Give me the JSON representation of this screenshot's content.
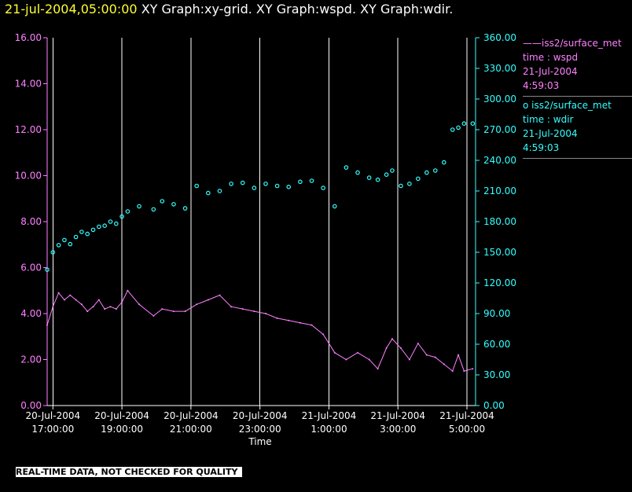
{
  "title": {
    "timestamp": "21-jul-2004,05:00:00",
    "graphs": " XY Graph:xy-grid.  XY Graph:wspd.  XY Graph:wdir."
  },
  "legend": [
    {
      "symbol": "——",
      "name": "iss2/surface_met",
      "var": "time : wspd",
      "date": "21-Jul-2004",
      "time": "4:59:03"
    },
    {
      "symbol": "o ",
      "name": "iss2/surface_met",
      "var": "time : wdir",
      "date": "21-Jul-2004",
      "time": "4:59:03"
    }
  ],
  "notice": "REAL-TIME DATA, NOT CHECKED FOR QUALITY",
  "colors": {
    "wspd": "#ff80ff",
    "wdir": "#33ffff",
    "grid": "#ffffff",
    "background": "#000000"
  },
  "chart_data": {
    "type": "line",
    "xlabel": "Time",
    "x_range": [
      "2004-07-20T16:50:00",
      "2004-07-21T05:15:00"
    ],
    "x_ticks": [
      {
        "t": "2004-07-20T17:00:00",
        "l1": "20-Jul-2004",
        "l2": "17:00:00"
      },
      {
        "t": "2004-07-20T19:00:00",
        "l1": "20-Jul-2004",
        "l2": "19:00:00"
      },
      {
        "t": "2004-07-20T21:00:00",
        "l1": "20-Jul-2004",
        "l2": "21:00:00"
      },
      {
        "t": "2004-07-20T23:00:00",
        "l1": "20-Jul-2004",
        "l2": "23:00:00"
      },
      {
        "t": "2004-07-21T01:00:00",
        "l1": "21-Jul-2004",
        "l2": "1:00:00"
      },
      {
        "t": "2004-07-21T03:00:00",
        "l1": "21-Jul-2004",
        "l2": "3:00:00"
      },
      {
        "t": "2004-07-21T05:00:00",
        "l1": "21-Jul-2004",
        "l2": "5:00:00"
      }
    ],
    "y_left": {
      "range": [
        0,
        16
      ],
      "ticks": [
        "0.00",
        "2.00",
        "4.00",
        "6.00",
        "8.00",
        "10.00",
        "12.00",
        "14.00",
        "16.00"
      ]
    },
    "y_right": {
      "range": [
        0,
        360
      ],
      "ticks": [
        "0.00",
        "30.00",
        "60.00",
        "90.00",
        "120.00",
        "150.00",
        "180.00",
        "210.00",
        "240.00",
        "270.00",
        "300.00",
        "330.00",
        "360.00"
      ]
    },
    "vertical_grid": true,
    "series": [
      {
        "name": "iss2/surface_met",
        "variable": "wspd",
        "axis": "left",
        "style": "line",
        "points": [
          [
            "2004-07-20T16:50:00",
            3.5
          ],
          [
            "2004-07-20T17:00:00",
            4.3
          ],
          [
            "2004-07-20T17:10:00",
            4.9
          ],
          [
            "2004-07-20T17:20:00",
            4.6
          ],
          [
            "2004-07-20T17:30:00",
            4.8
          ],
          [
            "2004-07-20T17:40:00",
            4.6
          ],
          [
            "2004-07-20T17:50:00",
            4.4
          ],
          [
            "2004-07-20T18:00:00",
            4.1
          ],
          [
            "2004-07-20T18:10:00",
            4.3
          ],
          [
            "2004-07-20T18:20:00",
            4.6
          ],
          [
            "2004-07-20T18:30:00",
            4.2
          ],
          [
            "2004-07-20T18:40:00",
            4.3
          ],
          [
            "2004-07-20T18:50:00",
            4.2
          ],
          [
            "2004-07-20T19:00:00",
            4.5
          ],
          [
            "2004-07-20T19:10:00",
            5.0
          ],
          [
            "2004-07-20T19:30:00",
            4.4
          ],
          [
            "2004-07-20T19:55:00",
            3.9
          ],
          [
            "2004-07-20T20:10:00",
            4.2
          ],
          [
            "2004-07-20T20:30:00",
            4.1
          ],
          [
            "2004-07-20T20:50:00",
            4.1
          ],
          [
            "2004-07-20T21:10:00",
            4.4
          ],
          [
            "2004-07-20T21:30:00",
            4.6
          ],
          [
            "2004-07-20T21:50:00",
            4.8
          ],
          [
            "2004-07-20T22:10:00",
            4.3
          ],
          [
            "2004-07-20T22:30:00",
            4.2
          ],
          [
            "2004-07-20T22:50:00",
            4.1
          ],
          [
            "2004-07-20T23:10:00",
            4.0
          ],
          [
            "2004-07-20T23:30:00",
            3.8
          ],
          [
            "2004-07-20T23:50:00",
            3.7
          ],
          [
            "2004-07-21T00:10:00",
            3.6
          ],
          [
            "2004-07-21T00:30:00",
            3.5
          ],
          [
            "2004-07-21T00:50:00",
            3.1
          ],
          [
            "2004-07-21T01:10:00",
            2.3
          ],
          [
            "2004-07-21T01:30:00",
            2.0
          ],
          [
            "2004-07-21T01:50:00",
            2.3
          ],
          [
            "2004-07-21T02:10:00",
            2.0
          ],
          [
            "2004-07-21T02:25:00",
            1.6
          ],
          [
            "2004-07-21T02:40:00",
            2.5
          ],
          [
            "2004-07-21T02:50:00",
            2.9
          ],
          [
            "2004-07-21T03:05:00",
            2.5
          ],
          [
            "2004-07-21T03:20:00",
            2.0
          ],
          [
            "2004-07-21T03:35:00",
            2.7
          ],
          [
            "2004-07-21T03:50:00",
            2.2
          ],
          [
            "2004-07-21T04:05:00",
            2.1
          ],
          [
            "2004-07-21T04:20:00",
            1.8
          ],
          [
            "2004-07-21T04:35:00",
            1.5
          ],
          [
            "2004-07-21T04:45:00",
            2.2
          ],
          [
            "2004-07-21T04:55:00",
            1.5
          ],
          [
            "2004-07-21T05:10:00",
            1.6
          ]
        ]
      },
      {
        "name": "iss2/surface_met",
        "variable": "wdir",
        "axis": "right",
        "style": "scatter",
        "points": [
          [
            "2004-07-20T16:50:00",
            133
          ],
          [
            "2004-07-20T17:00:00",
            150
          ],
          [
            "2004-07-20T17:10:00",
            157
          ],
          [
            "2004-07-20T17:20:00",
            162
          ],
          [
            "2004-07-20T17:30:00",
            158
          ],
          [
            "2004-07-20T17:40:00",
            165
          ],
          [
            "2004-07-20T17:50:00",
            170
          ],
          [
            "2004-07-20T18:00:00",
            168
          ],
          [
            "2004-07-20T18:10:00",
            172
          ],
          [
            "2004-07-20T18:20:00",
            175
          ],
          [
            "2004-07-20T18:30:00",
            176
          ],
          [
            "2004-07-20T18:40:00",
            180
          ],
          [
            "2004-07-20T18:50:00",
            178
          ],
          [
            "2004-07-20T19:00:00",
            185
          ],
          [
            "2004-07-20T19:10:00",
            190
          ],
          [
            "2004-07-20T19:30:00",
            195
          ],
          [
            "2004-07-20T19:55:00",
            192
          ],
          [
            "2004-07-20T20:10:00",
            200
          ],
          [
            "2004-07-20T20:30:00",
            197
          ],
          [
            "2004-07-20T20:50:00",
            193
          ],
          [
            "2004-07-20T21:10:00",
            215
          ],
          [
            "2004-07-20T21:30:00",
            208
          ],
          [
            "2004-07-20T21:50:00",
            210
          ],
          [
            "2004-07-20T22:10:00",
            217
          ],
          [
            "2004-07-20T22:30:00",
            218
          ],
          [
            "2004-07-20T22:50:00",
            213
          ],
          [
            "2004-07-20T23:10:00",
            217
          ],
          [
            "2004-07-20T23:30:00",
            215
          ],
          [
            "2004-07-20T23:50:00",
            214
          ],
          [
            "2004-07-21T00:10:00",
            219
          ],
          [
            "2004-07-21T00:30:00",
            220
          ],
          [
            "2004-07-21T00:50:00",
            213
          ],
          [
            "2004-07-21T01:10:00",
            195
          ],
          [
            "2004-07-21T01:30:00",
            233
          ],
          [
            "2004-07-21T01:50:00",
            228
          ],
          [
            "2004-07-21T02:10:00",
            223
          ],
          [
            "2004-07-21T02:25:00",
            221
          ],
          [
            "2004-07-21T02:40:00",
            226
          ],
          [
            "2004-07-21T02:50:00",
            230
          ],
          [
            "2004-07-21T03:05:00",
            215
          ],
          [
            "2004-07-21T03:20:00",
            217
          ],
          [
            "2004-07-21T03:35:00",
            222
          ],
          [
            "2004-07-21T03:50:00",
            228
          ],
          [
            "2004-07-21T04:05:00",
            230
          ],
          [
            "2004-07-21T04:20:00",
            238
          ],
          [
            "2004-07-21T04:35:00",
            270
          ],
          [
            "2004-07-21T04:45:00",
            272
          ],
          [
            "2004-07-21T04:55:00",
            276
          ],
          [
            "2004-07-21T05:10:00",
            276
          ]
        ]
      }
    ]
  }
}
